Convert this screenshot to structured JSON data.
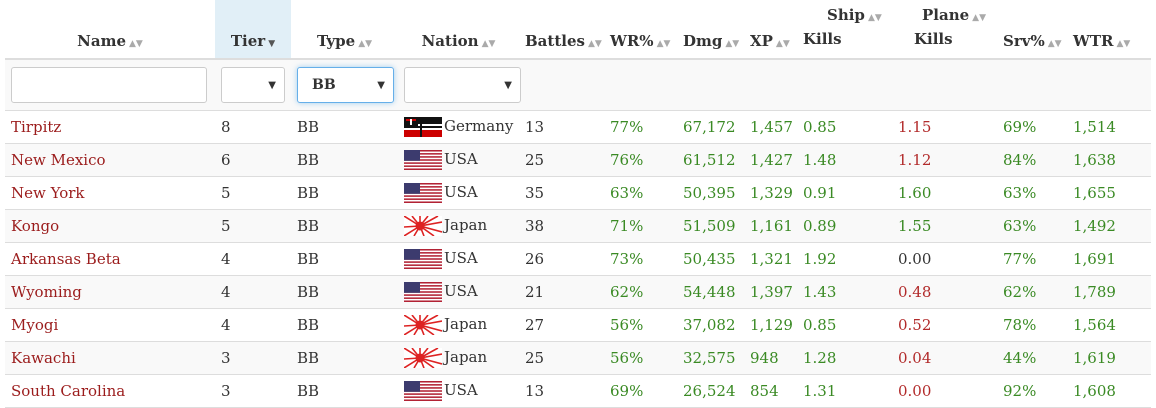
{
  "columns": [
    {
      "label": "Name"
    },
    {
      "label": "Tier"
    },
    {
      "label": "Type"
    },
    {
      "label": "Nation"
    },
    {
      "label": "Battles"
    },
    {
      "label": "WR%"
    },
    {
      "label": "Dmg"
    },
    {
      "label": "XP"
    },
    {
      "label": "Ship Kills"
    },
    {
      "label": "Plane Kills"
    },
    {
      "label": "Srv%"
    },
    {
      "label": "WTR"
    }
  ],
  "headers": {
    "name": "Name",
    "tier": "Tier",
    "type": "Type",
    "nation": "Nation",
    "battles": "Battles",
    "wr": "WR%",
    "dmg": "Dmg",
    "xp": "XP",
    "ship_kills_1": "Ship",
    "ship_kills_2": "Kills",
    "plane_kills_1": "Plane",
    "plane_kills_2": "Kills",
    "srv": "Srv%",
    "wtr": "WTR"
  },
  "filters": {
    "name_value": "",
    "tier_value": "",
    "type_value": "BB",
    "nation_value": ""
  },
  "rows": [
    {
      "name": "Tirpitz",
      "tier": "8",
      "type": "BB",
      "nation": "Germany",
      "flag": "germany-flag-icon",
      "battles": "13",
      "wr": "77%",
      "dmg": "67,172",
      "xp": "1,457",
      "ship_kills": "0.85",
      "plane_kills": "1.15",
      "plane_color": "red",
      "srv": "69%",
      "wtr": "1,514"
    },
    {
      "name": "New Mexico",
      "tier": "6",
      "type": "BB",
      "nation": "USA",
      "flag": "usa-flag-icon",
      "battles": "25",
      "wr": "76%",
      "dmg": "61,512",
      "xp": "1,427",
      "ship_kills": "1.48",
      "plane_kills": "1.12",
      "plane_color": "red",
      "srv": "84%",
      "wtr": "1,638"
    },
    {
      "name": "New York",
      "tier": "5",
      "type": "BB",
      "nation": "USA",
      "flag": "usa-flag-icon",
      "battles": "35",
      "wr": "63%",
      "dmg": "50,395",
      "xp": "1,329",
      "ship_kills": "0.91",
      "plane_kills": "1.60",
      "plane_color": "green",
      "srv": "63%",
      "wtr": "1,655"
    },
    {
      "name": "Kongo",
      "tier": "5",
      "type": "BB",
      "nation": "Japan",
      "flag": "japan-flag-icon",
      "battles": "38",
      "wr": "71%",
      "dmg": "51,509",
      "xp": "1,161",
      "ship_kills": "0.89",
      "plane_kills": "1.55",
      "plane_color": "green",
      "srv": "63%",
      "wtr": "1,492"
    },
    {
      "name": "Arkansas Beta",
      "tier": "4",
      "type": "BB",
      "nation": "USA",
      "flag": "usa-flag-icon",
      "battles": "26",
      "wr": "73%",
      "dmg": "50,435",
      "xp": "1,321",
      "ship_kills": "1.92",
      "plane_kills": "0.00",
      "plane_color": "dark",
      "srv": "77%",
      "wtr": "1,691"
    },
    {
      "name": "Wyoming",
      "tier": "4",
      "type": "BB",
      "nation": "USA",
      "flag": "usa-flag-icon",
      "battles": "21",
      "wr": "62%",
      "dmg": "54,448",
      "xp": "1,397",
      "ship_kills": "1.43",
      "plane_kills": "0.48",
      "plane_color": "red",
      "srv": "62%",
      "wtr": "1,789"
    },
    {
      "name": "Myogi",
      "tier": "4",
      "type": "BB",
      "nation": "Japan",
      "flag": "japan-flag-icon",
      "battles": "27",
      "wr": "56%",
      "dmg": "37,082",
      "xp": "1,129",
      "ship_kills": "0.85",
      "plane_kills": "0.52",
      "plane_color": "red",
      "srv": "78%",
      "wtr": "1,564"
    },
    {
      "name": "Kawachi",
      "tier": "3",
      "type": "BB",
      "nation": "Japan",
      "flag": "japan-flag-icon",
      "battles": "25",
      "wr": "56%",
      "dmg": "32,575",
      "xp": "948",
      "ship_kills": "1.28",
      "plane_kills": "0.04",
      "plane_color": "red",
      "srv": "44%",
      "wtr": "1,619"
    },
    {
      "name": "South Carolina",
      "tier": "3",
      "type": "BB",
      "nation": "USA",
      "flag": "usa-flag-icon",
      "battles": "13",
      "wr": "69%",
      "dmg": "26,524",
      "xp": "854",
      "ship_kills": "1.31",
      "plane_kills": "0.00",
      "plane_color": "red",
      "srv": "92%",
      "wtr": "1,608"
    }
  ]
}
